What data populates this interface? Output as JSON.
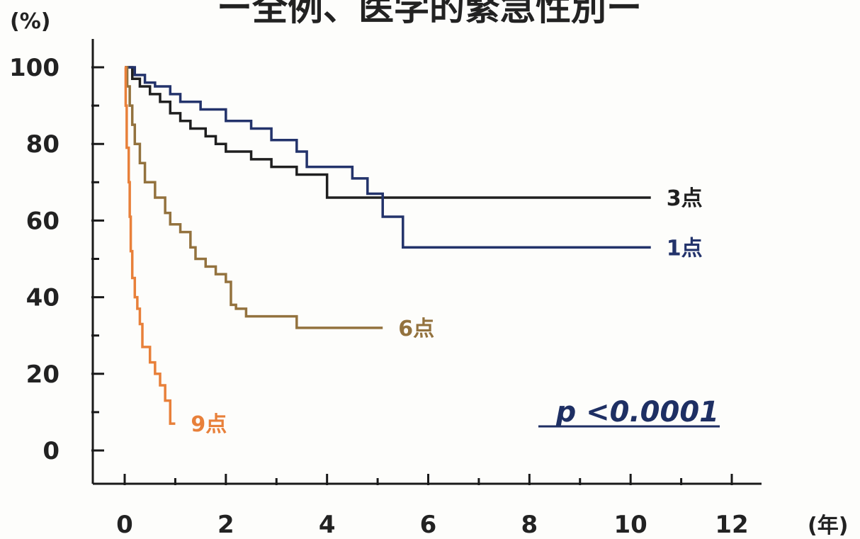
{
  "chart_data": {
    "type": "line",
    "title": "ー全例、医学的緊急性別ー",
    "y_unit": "(%)",
    "x_unit": "(年)",
    "xlim": [
      0,
      12
    ],
    "ylim": [
      0,
      100
    ],
    "x_ticks": [
      "0",
      "2",
      "4",
      "6",
      "8",
      "10",
      "12"
    ],
    "y_ticks": [
      "0",
      "20",
      "40",
      "60",
      "80",
      "100"
    ],
    "grid": false,
    "annotation": "p <0.0001",
    "series": [
      {
        "name": "3点",
        "color": "#1f1f1f",
        "points": [
          [
            0,
            100
          ],
          [
            0.15,
            97
          ],
          [
            0.3,
            95
          ],
          [
            0.5,
            93
          ],
          [
            0.7,
            91
          ],
          [
            0.9,
            88
          ],
          [
            1.1,
            86
          ],
          [
            1.3,
            84
          ],
          [
            1.6,
            82
          ],
          [
            1.8,
            80
          ],
          [
            2.0,
            78
          ],
          [
            2.5,
            76
          ],
          [
            2.9,
            74
          ],
          [
            3.4,
            72
          ],
          [
            4.0,
            66
          ],
          [
            4.8,
            66
          ],
          [
            5.5,
            66
          ],
          [
            8.0,
            66
          ],
          [
            10.4,
            66
          ]
        ]
      },
      {
        "name": "1点",
        "color": "#23336b",
        "points": [
          [
            0,
            100
          ],
          [
            0.2,
            98
          ],
          [
            0.4,
            96
          ],
          [
            0.6,
            95
          ],
          [
            0.9,
            93
          ],
          [
            1.1,
            91
          ],
          [
            1.5,
            89
          ],
          [
            2.0,
            86
          ],
          [
            2.5,
            84
          ],
          [
            2.9,
            81
          ],
          [
            3.4,
            78
          ],
          [
            3.6,
            74
          ],
          [
            4.5,
            71
          ],
          [
            4.8,
            67
          ],
          [
            5.1,
            61
          ],
          [
            5.5,
            53
          ],
          [
            8.0,
            53
          ],
          [
            10.4,
            53
          ]
        ]
      },
      {
        "name": "6点",
        "color": "#93723e",
        "points": [
          [
            0,
            100
          ],
          [
            0.05,
            95
          ],
          [
            0.1,
            90
          ],
          [
            0.15,
            85
          ],
          [
            0.2,
            80
          ],
          [
            0.3,
            75
          ],
          [
            0.4,
            70
          ],
          [
            0.6,
            66
          ],
          [
            0.8,
            62
          ],
          [
            0.9,
            59
          ],
          [
            1.1,
            57
          ],
          [
            1.3,
            53
          ],
          [
            1.4,
            50
          ],
          [
            1.6,
            48
          ],
          [
            1.8,
            46
          ],
          [
            2.0,
            44
          ],
          [
            2.1,
            38
          ],
          [
            2.2,
            37
          ],
          [
            2.4,
            35
          ],
          [
            3.4,
            32
          ],
          [
            5.1,
            32
          ]
        ]
      },
      {
        "name": "9点",
        "color": "#e8803a",
        "points": [
          [
            0,
            100
          ],
          [
            0.02,
            90
          ],
          [
            0.04,
            79
          ],
          [
            0.08,
            70
          ],
          [
            0.1,
            61
          ],
          [
            0.12,
            52
          ],
          [
            0.15,
            45
          ],
          [
            0.2,
            40
          ],
          [
            0.25,
            37
          ],
          [
            0.3,
            33
          ],
          [
            0.35,
            27
          ],
          [
            0.5,
            23
          ],
          [
            0.6,
            20
          ],
          [
            0.7,
            17
          ],
          [
            0.8,
            13
          ],
          [
            0.9,
            7
          ],
          [
            1.0,
            7
          ]
        ]
      }
    ]
  }
}
